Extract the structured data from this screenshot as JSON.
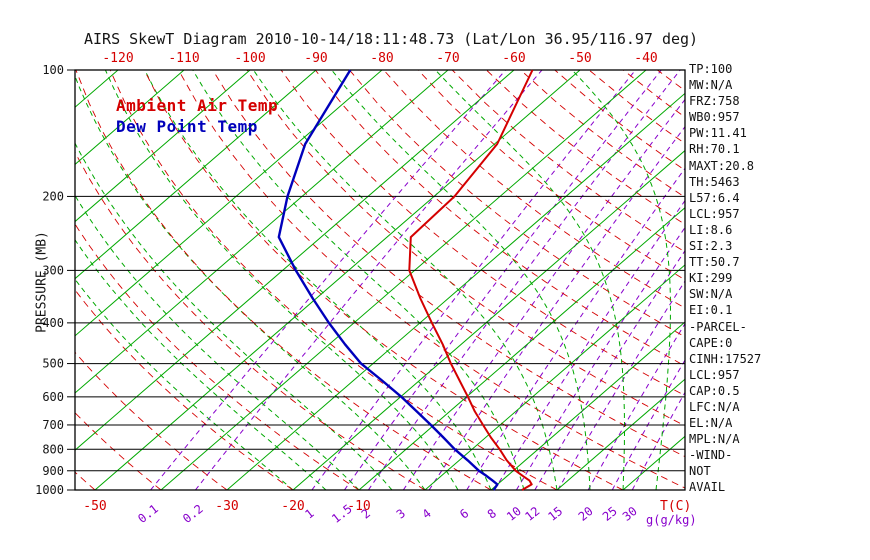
{
  "chart_data": {
    "type": "line",
    "title": "AIRS SkewT Diagram 2010-10-14/18:11:48.73 (Lat/Lon 36.95/116.97 deg)",
    "ylabel": "PRESSURE (MB)",
    "xlabel": "T(C)",
    "y_scale": "log",
    "ylim": [
      100,
      1000
    ],
    "y_ticks": [
      100,
      200,
      300,
      400,
      500,
      600,
      700,
      800,
      900,
      1000
    ],
    "top_x_ticks": [
      -120,
      -110,
      -100,
      -90,
      -80,
      -70,
      -60,
      -50,
      -40
    ],
    "bottom_x_ticks": [
      -50,
      -30,
      -20,
      -10
    ],
    "legend_position": "top-left inside plot",
    "grid": "skew-t log-p background",
    "series": [
      {
        "name": "Ambient Air Temp",
        "color": "#d40000",
        "points": [
          [
            1000,
            14.7
          ],
          [
            970,
            15.2
          ],
          [
            950,
            14.2
          ],
          [
            925,
            12.3
          ],
          [
            900,
            10.4
          ],
          [
            850,
            7.2
          ],
          [
            800,
            4.2
          ],
          [
            750,
            0.8
          ],
          [
            700,
            -2.6
          ],
          [
            650,
            -6.2
          ],
          [
            600,
            -9.8
          ],
          [
            550,
            -13.8
          ],
          [
            500,
            -18.2
          ],
          [
            450,
            -22.8
          ],
          [
            400,
            -28.2
          ],
          [
            350,
            -34.2
          ],
          [
            300,
            -40.8
          ],
          [
            250,
            -46.4
          ],
          [
            200,
            -46.9
          ],
          [
            150,
            -49.6
          ],
          [
            100,
            -57.2
          ]
        ]
      },
      {
        "name": "Dew Point Temp",
        "color": "#0000bb",
        "points": [
          [
            1000,
            10.4
          ],
          [
            970,
            10.0
          ],
          [
            950,
            8.6
          ],
          [
            925,
            6.8
          ],
          [
            900,
            4.8
          ],
          [
            850,
            1.3
          ],
          [
            800,
            -2.6
          ],
          [
            750,
            -6.4
          ],
          [
            700,
            -10.5
          ],
          [
            650,
            -15.0
          ],
          [
            600,
            -19.9
          ],
          [
            550,
            -25.5
          ],
          [
            500,
            -31.8
          ],
          [
            450,
            -37.6
          ],
          [
            400,
            -43.8
          ],
          [
            350,
            -50.5
          ],
          [
            300,
            -58.0
          ],
          [
            250,
            -66.4
          ],
          [
            200,
            -72.2
          ],
          [
            150,
            -78.7
          ],
          [
            100,
            -84.8
          ]
        ]
      }
    ],
    "background_lines": {
      "isotherms": {
        "color": "#00a800",
        "style": "solid",
        "from": -160,
        "to": 40,
        "step": 10
      },
      "dry_adiabats": {
        "color": "#d40000",
        "style": "dashed",
        "from": -60,
        "to": 200,
        "step": 10
      },
      "moist_adiabats": {
        "color": "#00a800",
        "style": "dashed",
        "from": -20,
        "to": 40,
        "step": 5
      },
      "mixing_ratio": {
        "color": "#8800cc",
        "style": "dashed",
        "values": [
          0.1,
          0.2,
          1,
          1.5,
          2,
          3,
          4,
          6,
          8,
          10,
          12,
          15,
          20,
          25,
          30
        ],
        "unit": "g(g/kg)"
      }
    }
  },
  "stats_panel": [
    "TP:100",
    "MW:N/A",
    "FRZ:758",
    "WB0:957",
    "PW:11.41",
    "RH:70.1",
    "MAXT:20.8",
    "TH:5463",
    "L57:6.4",
    "LCL:957",
    "LI:8.6",
    "SI:2.3",
    "TT:50.7",
    "KI:299",
    "SW:N/A",
    "EI:0.1",
    "-PARCEL-",
    "CAPE:0",
    "CINH:17527",
    "LCL:957",
    "CAP:0.5",
    "LFC:N/A",
    "EL:N/A",
    "MPL:N/A",
    "-WIND-",
    "NOT",
    "AVAIL"
  ]
}
